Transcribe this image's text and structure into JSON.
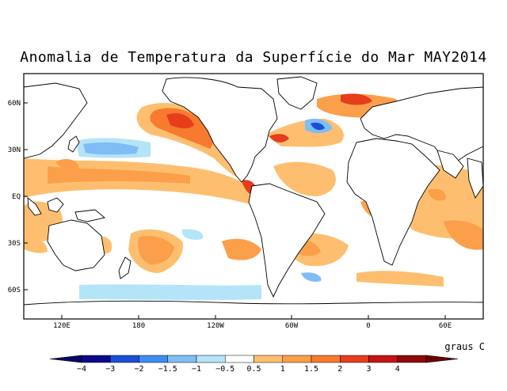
{
  "title": "Anomalia de Temperatura da Superfície do Mar MAY2014",
  "units_label": "graus C",
  "lat_labels": [
    "60N",
    "30N",
    "EQ",
    "30S",
    "60S"
  ],
  "lon_labels": [
    "120E",
    "180",
    "120W",
    "60W",
    "0",
    "60E"
  ],
  "colorbar": {
    "labels": [
      "−4",
      "−3",
      "−2",
      "−1.5",
      "−1",
      "−0.5",
      "0.5",
      "1",
      "1.5",
      "2",
      "3",
      "4"
    ],
    "colors": [
      "#0a0a8c",
      "#1b4fd6",
      "#3d8ef0",
      "#7fbdf5",
      "#b4e4f7",
      "#ffffff",
      "#fdbf6f",
      "#fc9f4a",
      "#f77a2e",
      "#e63d1c",
      "#c41414",
      "#8c0a0a"
    ],
    "end_colors": {
      "low": "#080866",
      "high": "#6b0505"
    }
  },
  "colors": {
    "land_outline": "#000000",
    "frame": "#000000"
  }
}
